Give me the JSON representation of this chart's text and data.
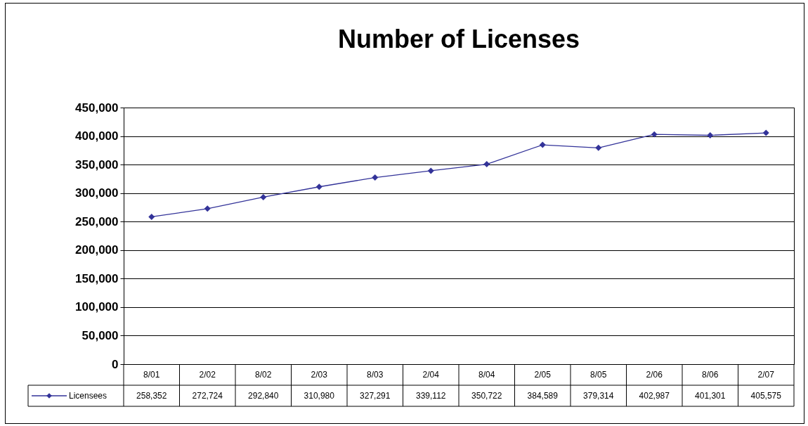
{
  "chart_data": {
    "type": "line",
    "title": "Number of Licenses",
    "categories": [
      "8/01",
      "2/02",
      "8/02",
      "2/03",
      "8/03",
      "2/04",
      "8/04",
      "2/05",
      "8/05",
      "2/06",
      "8/06",
      "2/07"
    ],
    "series": [
      {
        "name": "Licensees",
        "color": "#333399",
        "values": [
          258352,
          272724,
          292840,
          310980,
          327291,
          339112,
          350722,
          384589,
          379314,
          402987,
          401301,
          405575
        ],
        "value_labels": [
          "258,352",
          "272,724",
          "292,840",
          "310,980",
          "327,291",
          "339,112",
          "350,722",
          "384,589",
          "379,314",
          "402,987",
          "401,301",
          "405,575"
        ]
      }
    ],
    "ylim": [
      0,
      450000
    ],
    "yticks": [
      0,
      {
        "value": 50000,
        "label": "50,000"
      },
      {
        "value": 100000,
        "label": "100,000"
      },
      {
        "value": 150000,
        "label": "150,000"
      },
      {
        "value": 200000,
        "label": "200,000"
      },
      {
        "value": 250000,
        "label": "250,000"
      },
      {
        "value": 300000,
        "label": "300,000"
      },
      {
        "value": 350000,
        "label": "350,000"
      },
      {
        "value": 400000,
        "label": "400,000"
      },
      {
        "value": 450000,
        "label": "450,000"
      }
    ],
    "grid": "y",
    "legend": "bottom",
    "marker": "diamond",
    "line_style": "solid"
  }
}
